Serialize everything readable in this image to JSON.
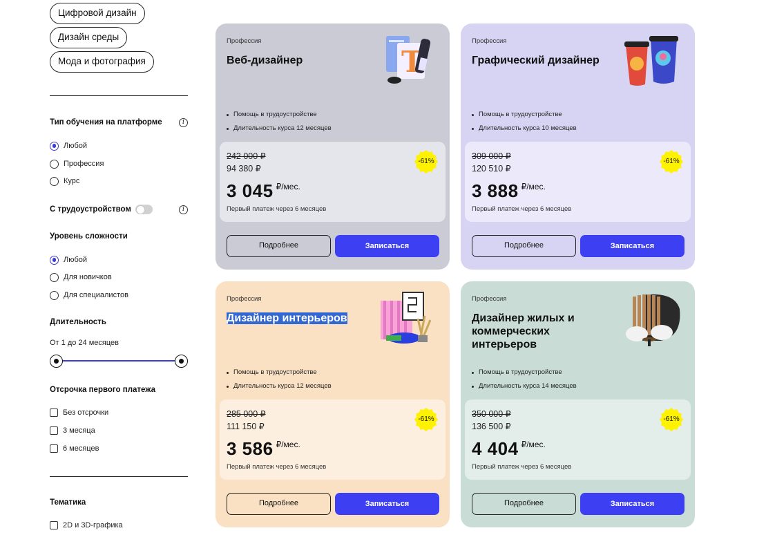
{
  "sidebar": {
    "chips": [
      "Цифровой дизайн",
      "Дизайн среды",
      "Мода и фотография"
    ],
    "learning_type": {
      "title": "Тип обучения на платформе",
      "info_icon": "info-icon",
      "options": [
        "Любой",
        "Профессия",
        "Курс"
      ],
      "selected": "Любой"
    },
    "employment": {
      "label": "С трудоустройством",
      "enabled": false
    },
    "level": {
      "title": "Уровень сложности",
      "options": [
        "Любой",
        "Для новичков",
        "Для специалистов"
      ],
      "selected": "Любой"
    },
    "duration": {
      "title": "Длительность",
      "range_text": "От 1 до 24 месяцев",
      "min": 1,
      "max": 24
    },
    "deferral": {
      "title": "Отсрочка первого платежа",
      "options": [
        "Без отсрочки",
        "3 месяца",
        "6 месяцев"
      ]
    },
    "topic": {
      "title": "Тематика",
      "options": [
        "2D и 3D-графика"
      ]
    }
  },
  "cards": [
    {
      "category": "Профессия",
      "title": "Веб-дизайнер",
      "bullets": [
        "Помощь в трудоустройстве",
        "Длительность курса 12 месяцев"
      ],
      "old_price": "242 000 ₽",
      "new_price": "94 380 ₽",
      "monthly": "3 045",
      "per_month": "₽/мес.",
      "first_payment": "Первый платеж через 6 месяцев",
      "discount": "-61%",
      "btn_more": "Подробнее",
      "btn_enroll": "Записаться",
      "bg": "#cbcbd6",
      "price_bg": "#e5e5ec",
      "illustration": "typography-icon"
    },
    {
      "category": "Профессия",
      "title": "Графический дизайнер",
      "bullets": [
        "Помощь в трудоустройстве",
        "Длительность курса 10 месяцев"
      ],
      "old_price": "309 000 ₽",
      "new_price": "120 510 ₽",
      "monthly": "3 888",
      "per_month": "₽/мес.",
      "first_payment": "Первый платеж через 6 месяцев",
      "discount": "-61%",
      "btn_more": "Подробнее",
      "btn_enroll": "Записаться",
      "bg": "#d7d4f3",
      "price_bg": "#ebe9fa",
      "illustration": "cups-icon"
    },
    {
      "category": "Профессия",
      "title": "Дизайнер интерьеров",
      "bullets": [
        "Помощь в трудоустройстве",
        "Длительность курса 12 месяцев"
      ],
      "old_price": "285 000 ₽",
      "new_price": "111 150 ₽",
      "monthly": "3 586",
      "per_month": "₽/мес.",
      "first_payment": "Первый платеж через 6 месяцев",
      "discount": "-61%",
      "btn_more": "Подробнее",
      "btn_enroll": "Записаться",
      "bg": "#fbe1c4",
      "price_bg": "#fdefdf",
      "illustration": "interior-icon",
      "title_selected": true
    },
    {
      "category": "Профессия",
      "title": "Дизайнер жилых и коммерческих интерьеров",
      "bullets": [
        "Помощь в трудоустройстве",
        "Длительность курса 14 месяцев"
      ],
      "old_price": "350 000 ₽",
      "new_price": "136 500 ₽",
      "monthly": "4 404",
      "per_month": "₽/мес.",
      "first_payment": "Первый платеж через 6 месяцев",
      "discount": "-61%",
      "btn_more": "Подробнее",
      "btn_enroll": "Записаться",
      "bg": "#c9ddd6",
      "price_bg": "#e3ede9",
      "illustration": "furniture-icon"
    }
  ],
  "colors": {
    "accent": "#3d3ff2",
    "radio_active": "#3a3ad6",
    "discount_badge": "#fff200"
  }
}
